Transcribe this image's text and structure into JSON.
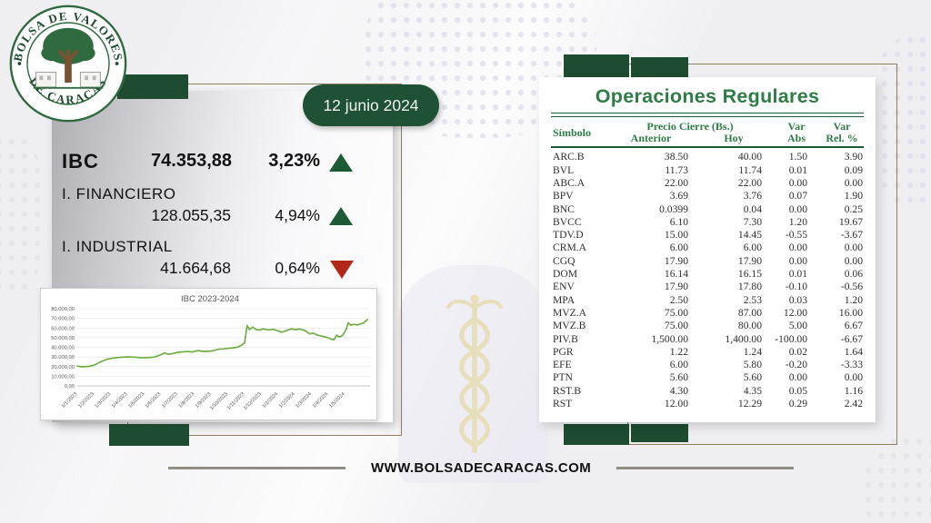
{
  "logo": {
    "top_text": "BOLSA DE VALORES",
    "bottom_text": "DE CARACAS"
  },
  "date_badge": {
    "label": "12 junio 2024"
  },
  "indices": {
    "main": {
      "name": "IBC",
      "value": "74.353,88",
      "change_pct": "3,23%",
      "direction": "up"
    },
    "financiero": {
      "name": "I. FINANCIERO",
      "value": "128.055,35",
      "change_pct": "4,94%",
      "direction": "up"
    },
    "industrial": {
      "name": "I. INDUSTRIAL",
      "value": "41.664,68",
      "change_pct": "0,64%",
      "direction": "down"
    }
  },
  "chart_data": {
    "type": "line",
    "title": "IBC 2023-2024",
    "xlabel": "",
    "ylabel": "",
    "ylim": [
      0,
      80000
    ],
    "x_domain_months": [
      0,
      17.5
    ],
    "grid": true,
    "line_color": "#70ad47",
    "y_tick_labels": [
      "80.000,00",
      "70.000,00",
      "60.000,00",
      "50.000,00",
      "40.000,00",
      "30.000,00",
      "20.000,00",
      "10.000,00",
      "0,00"
    ],
    "x_tick_labels": [
      "1/1/2023",
      "1/2/2023",
      "1/3/2023",
      "1/4/2023",
      "1/5/2023",
      "1/6/2023",
      "1/7/2023",
      "1/8/2023",
      "1/9/2023",
      "1/10/2023",
      "1/11/2023",
      "1/12/2023",
      "1/1/2024",
      "1/2/2024",
      "1/3/2024",
      "1/4/2024",
      "1/5/2024"
    ],
    "series": [
      {
        "name": "IBC",
        "points": [
          [
            0,
            20500
          ],
          [
            0.3,
            19800
          ],
          [
            0.7,
            20200
          ],
          [
            1,
            21500
          ],
          [
            1.4,
            25000
          ],
          [
            1.8,
            27800
          ],
          [
            2.2,
            29000
          ],
          [
            2.6,
            29600
          ],
          [
            3,
            30100
          ],
          [
            3.4,
            29800
          ],
          [
            3.8,
            29200
          ],
          [
            4.2,
            29300
          ],
          [
            4.6,
            29800
          ],
          [
            5,
            32300
          ],
          [
            5.2,
            34100
          ],
          [
            5.45,
            32800
          ],
          [
            5.7,
            33500
          ],
          [
            6,
            34800
          ],
          [
            6.3,
            35300
          ],
          [
            6.6,
            35600
          ],
          [
            6.9,
            35200
          ],
          [
            7.2,
            36600
          ],
          [
            7.5,
            35800
          ],
          [
            7.8,
            35800
          ],
          [
            8.1,
            36300
          ],
          [
            8.4,
            37900
          ],
          [
            8.7,
            38300
          ],
          [
            9,
            38900
          ],
          [
            9.3,
            39400
          ],
          [
            9.6,
            40100
          ],
          [
            9.85,
            42600
          ],
          [
            10,
            44600
          ],
          [
            10.15,
            62600
          ],
          [
            10.3,
            58400
          ],
          [
            10.5,
            61000
          ],
          [
            10.65,
            58600
          ],
          [
            10.9,
            57800
          ],
          [
            11.1,
            59100
          ],
          [
            11.4,
            58100
          ],
          [
            11.7,
            58600
          ],
          [
            12,
            57100
          ],
          [
            12.2,
            55600
          ],
          [
            12.5,
            57200
          ],
          [
            12.8,
            59100
          ],
          [
            13.05,
            58400
          ],
          [
            13.3,
            58900
          ],
          [
            13.6,
            57400
          ],
          [
            13.9,
            53900
          ],
          [
            14.1,
            54600
          ],
          [
            14.4,
            52400
          ],
          [
            14.7,
            51200
          ],
          [
            15,
            49900
          ],
          [
            15.2,
            48400
          ],
          [
            15.35,
            47800
          ],
          [
            15.5,
            52600
          ],
          [
            15.65,
            50600
          ],
          [
            15.85,
            52100
          ],
          [
            16.05,
            57600
          ],
          [
            16.2,
            65400
          ],
          [
            16.35,
            62900
          ],
          [
            16.55,
            63900
          ],
          [
            16.7,
            63100
          ],
          [
            16.9,
            64100
          ],
          [
            17.1,
            65100
          ],
          [
            17.35,
            68800
          ]
        ]
      }
    ]
  },
  "operations_table": {
    "title": "Operaciones Regulares",
    "headers": {
      "symbol": "Símbolo",
      "price_close_group": "Precio Cierre (Bs.)",
      "previous": "Anterior",
      "today": "Hoy",
      "var_abs_line1": "Var",
      "var_abs_line2": "Abs",
      "var_rel_line1": "Var",
      "var_rel_line2": "Rel. %"
    },
    "rows": [
      [
        "ARC.B",
        "38.50",
        "40.00",
        "1.50",
        "3.90"
      ],
      [
        "BVL",
        "11.73",
        "11.74",
        "0.01",
        "0.09"
      ],
      [
        "ABC.A",
        "22.00",
        "22.00",
        "0.00",
        "0.00"
      ],
      [
        "BPV",
        "3.69",
        "3.76",
        "0.07",
        "1.90"
      ],
      [
        "BNC",
        "0.0399",
        "0.04",
        "0.00",
        "0.25"
      ],
      [
        "BVCC",
        "6.10",
        "7.30",
        "1.20",
        "19.67"
      ],
      [
        "TDV.D",
        "15.00",
        "14.45",
        "-0.55",
        "-3.67"
      ],
      [
        "CRM.A",
        "6.00",
        "6.00",
        "0.00",
        "0.00"
      ],
      [
        "CGQ",
        "17.90",
        "17.90",
        "0.00",
        "0.00"
      ],
      [
        "DOM",
        "16.14",
        "16.15",
        "0.01",
        "0.06"
      ],
      [
        "ENV",
        "17.90",
        "17.80",
        "-0.10",
        "-0.56"
      ],
      [
        "MPA",
        "2.50",
        "2.53",
        "0.03",
        "1.20"
      ],
      [
        "MVZ.A",
        "75.00",
        "87.00",
        "12.00",
        "16.00"
      ],
      [
        "MVZ.B",
        "75.00",
        "80.00",
        "5.00",
        "6.67"
      ],
      [
        "PIV.B",
        "1,500.00",
        "1,400.00",
        "-100.00",
        "-6.67"
      ],
      [
        "PGR",
        "1.22",
        "1.24",
        "0.02",
        "1.64"
      ],
      [
        "EFE",
        "6.00",
        "5.80",
        "-0.20",
        "-3.33"
      ],
      [
        "PTN",
        "5.60",
        "5.60",
        "0.00",
        "0.00"
      ],
      [
        "RST.B",
        "4.30",
        "4.35",
        "0.05",
        "1.16"
      ],
      [
        "RST",
        "12.00",
        "12.29",
        "0.29",
        "2.42"
      ]
    ]
  },
  "footer": {
    "url": "WWW.BOLSADECARACAS.COM"
  },
  "colors": {
    "dark_green": "#1d4c30",
    "table_green": "#2e7d46",
    "chart_line_green": "#70ad47",
    "down_red": "#b3261a",
    "outline_olive": "#8d8060",
    "gold": "#e6dcae"
  }
}
